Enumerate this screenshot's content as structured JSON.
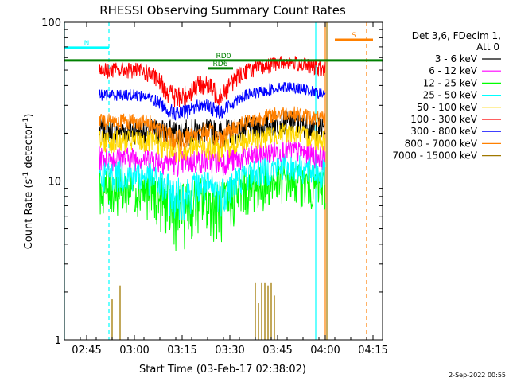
{
  "chart_data": {
    "type": "line",
    "title": "RHESSI Observing Summary Count Rates",
    "xlabel": "Start Time (03-Feb-17 02:38:02)",
    "ylabel_main": "Count Rate (s",
    "ylabel_sup1": "-1",
    "ylabel_mid": " detector",
    "ylabel_sup2": "-1",
    "ylabel_end": ")",
    "y_scale": "log",
    "ylim": [
      1,
      100
    ],
    "xlim_minutes": [
      0,
      100
    ],
    "x_ticks": [
      {
        "m": 7,
        "label": "02:45"
      },
      {
        "m": 22,
        "label": "03:00"
      },
      {
        "m": 37,
        "label": "03:15"
      },
      {
        "m": 52,
        "label": "03:30"
      },
      {
        "m": 67,
        "label": "03:45"
      },
      {
        "m": 82,
        "label": "04:00"
      },
      {
        "m": 97,
        "label": "04:15"
      }
    ],
    "y_ticks": [
      {
        "v": 1,
        "label": "1"
      },
      {
        "v": 10,
        "label": "10"
      },
      {
        "v": 100,
        "label": "100"
      }
    ],
    "legend_header": [
      "Det 3,6, FDecim 1,",
      "Att 0"
    ],
    "series": [
      {
        "name": "3 - 6 keV",
        "color": "#000000",
        "base": 21,
        "amp": 4,
        "dip": 0.05
      },
      {
        "name": "6 - 12 keV",
        "color": "#ff00ff",
        "base": 14,
        "amp": 2.5,
        "dip": 0.1
      },
      {
        "name": "12 - 25 keV",
        "color": "#00ff00",
        "base": 9,
        "amp": 3,
        "dip": 0.45
      },
      {
        "name": "25 - 50 keV",
        "color": "#00ffff",
        "base": 11,
        "amp": 2.5,
        "dip": 0.45
      },
      {
        "name": "50 - 100 keV",
        "color": "#ffd700",
        "base": 18,
        "amp": 3,
        "dip": 0.2
      },
      {
        "name": "100 - 300 keV",
        "color": "#ff0000",
        "base": 50,
        "amp": 6,
        "dip": 0.55
      },
      {
        "name": "300 - 800 keV",
        "color": "#0000ff",
        "base": 35,
        "amp": 3,
        "dip": 0.4
      },
      {
        "name": "800 - 7000 keV",
        "color": "#ff8000",
        "base": 24,
        "amp": 3,
        "dip": 0.4
      },
      {
        "name": "7000 - 15000 keV",
        "color": "#a07800",
        "base": 1,
        "amp": 0,
        "dip": 0
      }
    ],
    "data_range_minutes": [
      11,
      82
    ],
    "flags": [
      {
        "label": "N",
        "color": "#00ffff",
        "y_frac": 0.08,
        "segments": [
          [
            0,
            14
          ]
        ]
      },
      {
        "label": "S",
        "color": "#ff8000",
        "y_frac": 0.055,
        "segments": [
          [
            85,
            97
          ]
        ]
      },
      {
        "label": "RD0",
        "color": "#008000",
        "y_frac": 0.12,
        "segments": [
          [
            0,
            100
          ]
        ]
      },
      {
        "label": "RD6",
        "color": "#008000",
        "y_frac": 0.145,
        "segments": [
          [
            45,
            53
          ]
        ]
      }
    ],
    "vlines": [
      {
        "m": 14,
        "color": "#00ffff",
        "dash": true
      },
      {
        "m": 0,
        "color": "#00ffff",
        "dash": false
      },
      {
        "m": 79,
        "color": "#00ffff",
        "dash": false
      },
      {
        "m": 82,
        "color": "#ff8000",
        "dash": false
      },
      {
        "m": 82.5,
        "color": "#a07800",
        "dash": false
      },
      {
        "m": 95,
        "color": "#ff8000",
        "dash": true
      }
    ],
    "n_spikes": [
      {
        "m": 15,
        "v": 1.8
      },
      {
        "m": 17.5,
        "v": 2.2
      },
      {
        "m": 60,
        "v": 2.3
      },
      {
        "m": 61,
        "v": 1.7
      },
      {
        "m": 62,
        "v": 2.3
      },
      {
        "m": 63,
        "v": 2.3
      },
      {
        "m": 64,
        "v": 2.2
      },
      {
        "m": 65,
        "v": 2.3
      },
      {
        "m": 66,
        "v": 1.9
      }
    ]
  },
  "footer_date": "2-Sep-2022 00:55"
}
